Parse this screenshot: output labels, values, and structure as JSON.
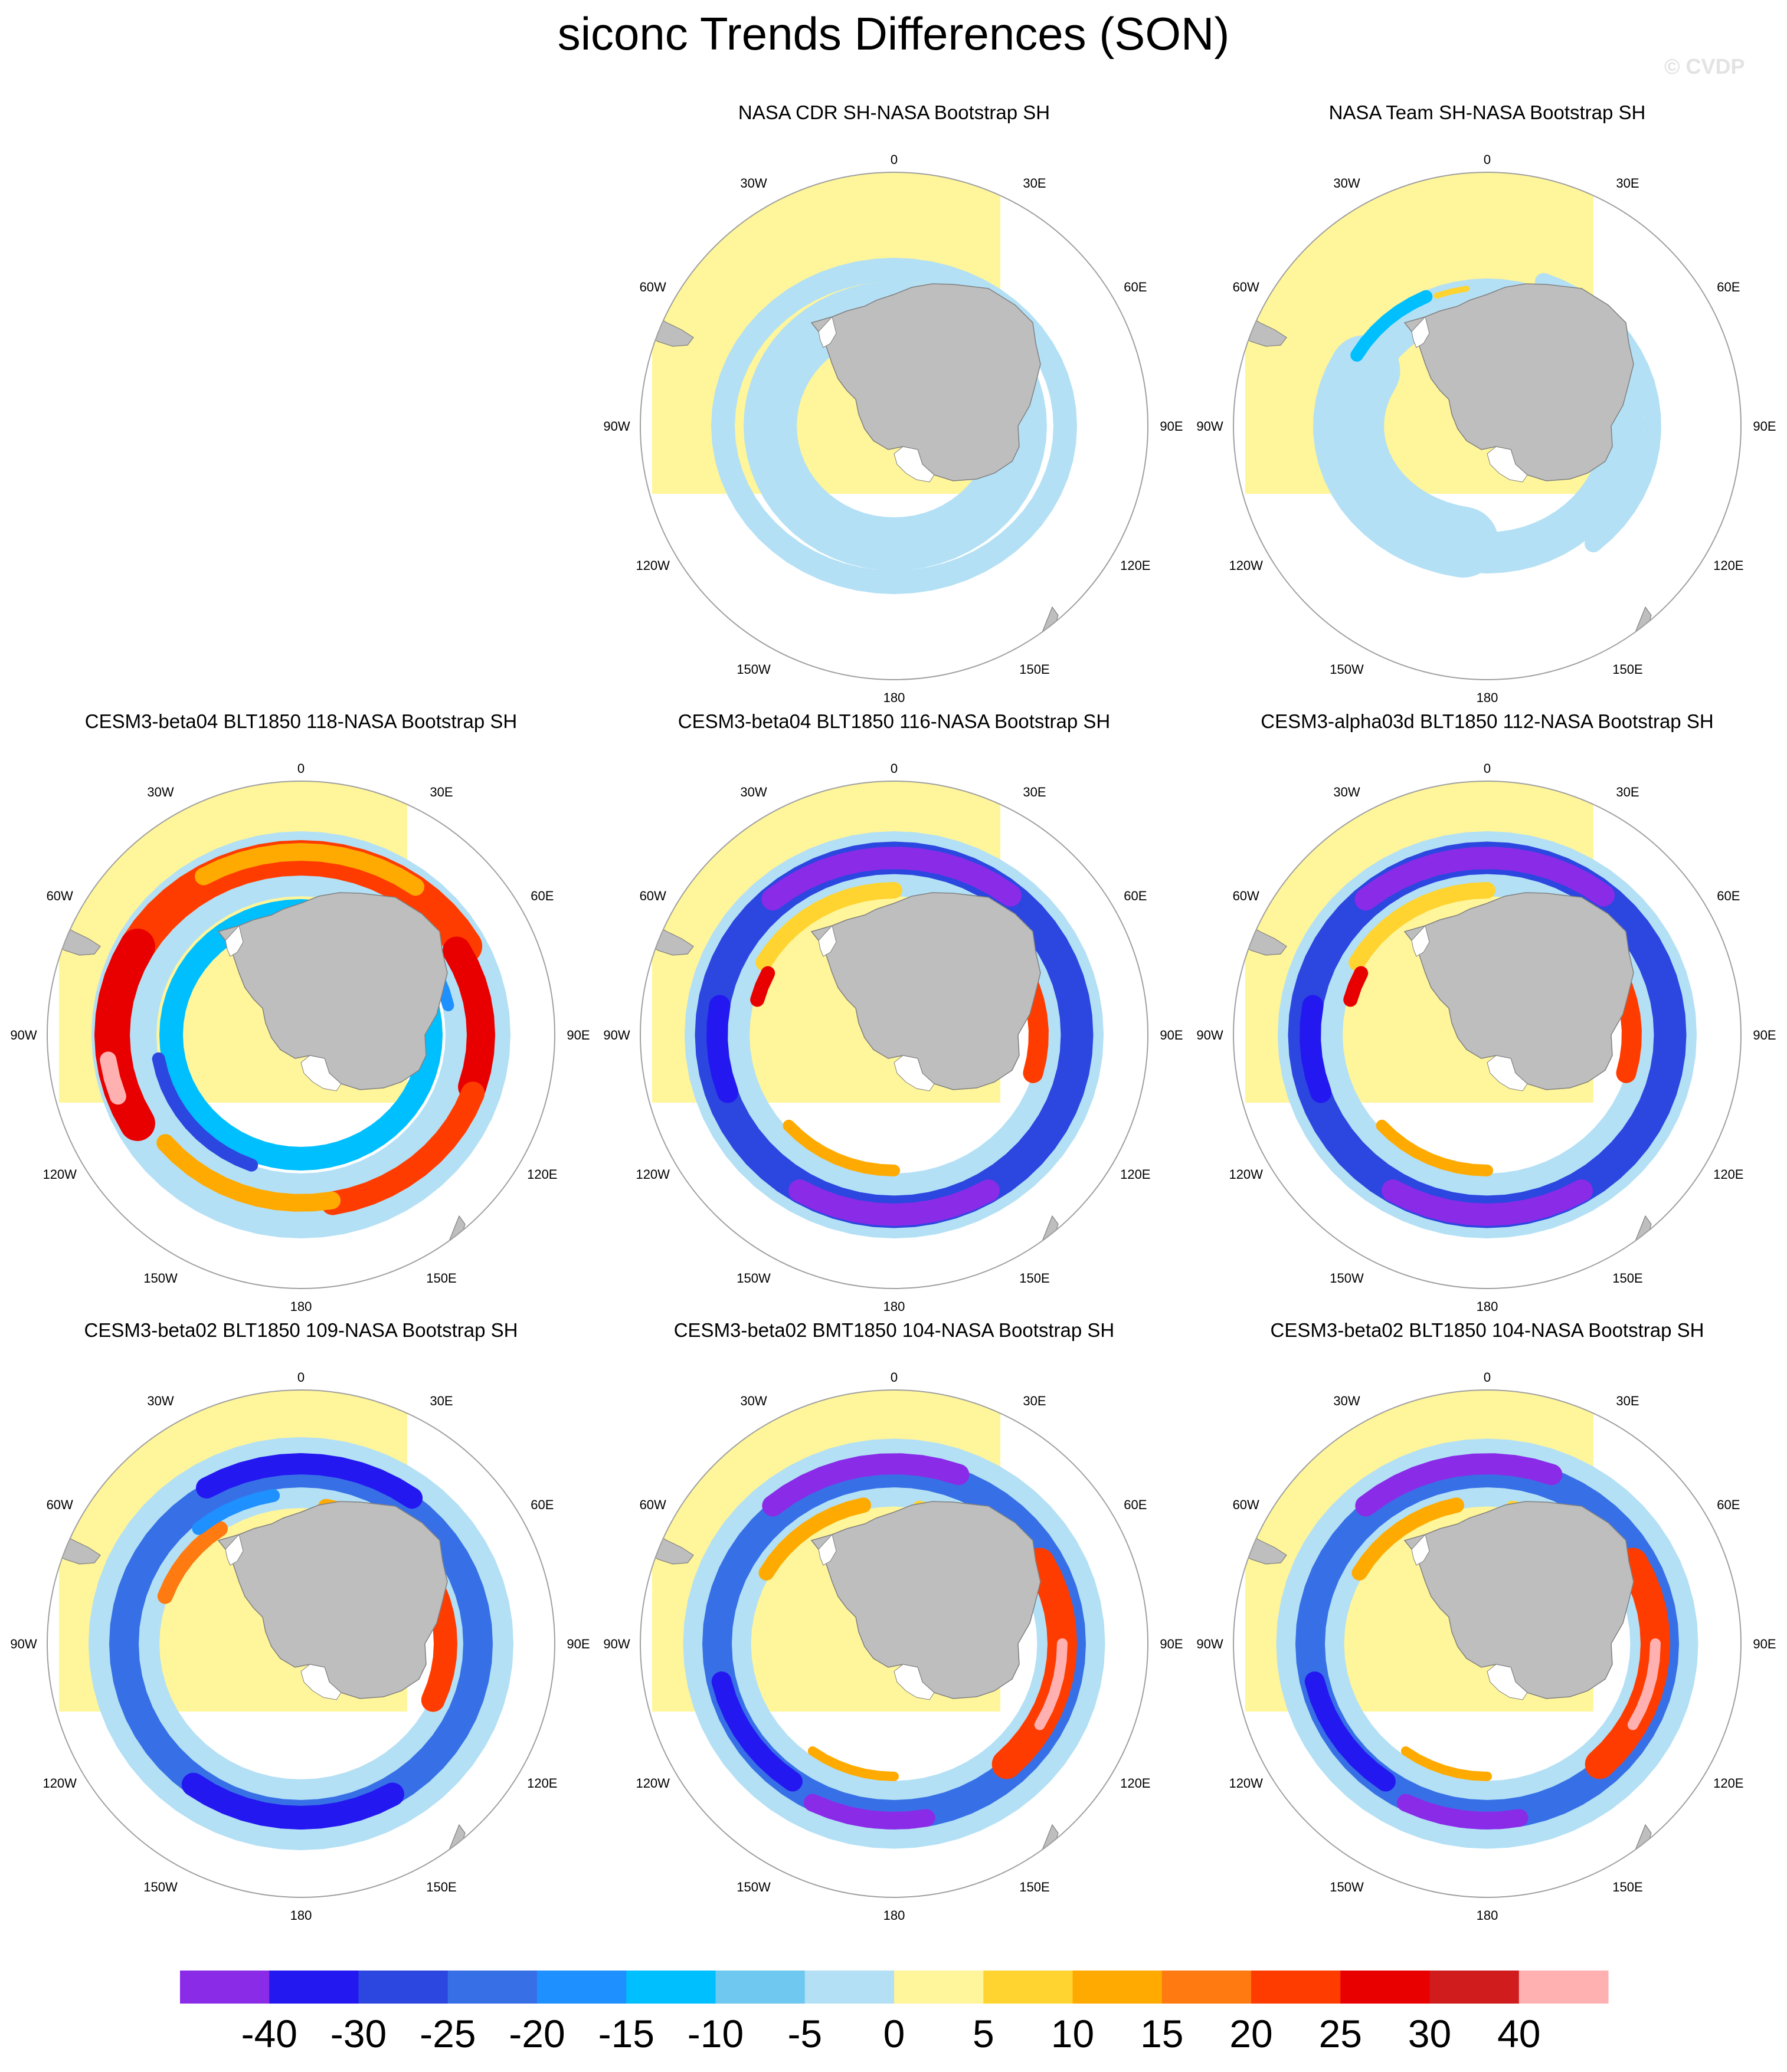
{
  "figure": {
    "title": "siconc Trends Differences (SON)",
    "watermark": "© CVDP"
  },
  "grid_labels": {
    "top": "0",
    "top_left": "30W",
    "top_right": "30E",
    "upper_left": "60W",
    "upper_right": "60E",
    "left": "90W",
    "right": "90E",
    "lower_left": "120W",
    "lower_right": "120E",
    "bottom_left": "150W",
    "bottom_right": "150E",
    "bottom": "180"
  },
  "panels": [
    {
      "title": "NASA CDR SH-NASA Bootstrap SH",
      "pattern": "obs_cdr"
    },
    {
      "title": "NASA Team SH-NASA Bootstrap SH",
      "pattern": "obs_team"
    },
    {
      "title": "CESM3-beta04 BLT1850 118-NASA Bootstrap SH",
      "pattern": "model_warm_ring"
    },
    {
      "title": "CESM3-beta04 BLT1850 116-NASA Bootstrap SH",
      "pattern": "model_cold_ring"
    },
    {
      "title": "CESM3-alpha03d BLT1850 112-NASA Bootstrap SH",
      "pattern": "model_cold_ring"
    },
    {
      "title": "CESM3-beta02 BLT1850 109-NASA Bootstrap SH",
      "pattern": "model_mixed"
    },
    {
      "title": "CESM3-beta02 BMT1850 104-NASA Bootstrap SH",
      "pattern": "model_east_warm"
    },
    {
      "title": "CESM3-beta02 BLT1850 104-NASA Bootstrap SH",
      "pattern": "model_east_warm"
    }
  ],
  "colorbar": {
    "labels": [
      "-40",
      "-30",
      "-25",
      "-20",
      "-15",
      "-10",
      "-5",
      "0",
      "5",
      "10",
      "15",
      "20",
      "25",
      "30",
      "40"
    ],
    "colors": [
      "#8a2be8",
      "#2318f0",
      "#2c46e0",
      "#3770e6",
      "#1e90ff",
      "#00bfff",
      "#6ec8f0",
      "#b3e0f5",
      "#fff59a",
      "#ffd330",
      "#ffaa00",
      "#ff7a10",
      "#ff3c00",
      "#e80000",
      "#d01c1c",
      "#ffb0b0"
    ]
  }
}
